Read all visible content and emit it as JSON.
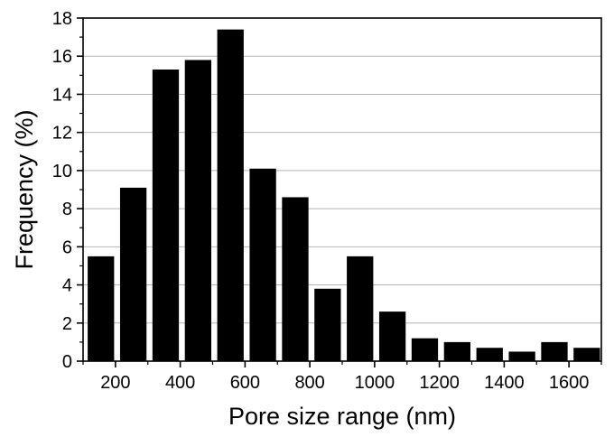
{
  "chart_data": {
    "type": "bar",
    "xlabel": "Pore size range (nm)",
    "ylabel": "Frequency (%)",
    "x": [
      150,
      250,
      350,
      450,
      550,
      650,
      750,
      850,
      950,
      1050,
      1150,
      1250,
      1350,
      1450,
      1550,
      1650
    ],
    "values": [
      5.5,
      9.1,
      15.3,
      15.8,
      17.4,
      10.1,
      8.6,
      3.8,
      5.5,
      2.6,
      1.2,
      1.0,
      0.7,
      0.5,
      1.0,
      0.7
    ],
    "bar_width": 90,
    "xlim": [
      100,
      1700
    ],
    "ylim": [
      0,
      18
    ],
    "x_ticks": [
      200,
      400,
      600,
      800,
      1000,
      1200,
      1400,
      1600
    ],
    "x_tick_labels": [
      "200",
      "400",
      "600",
      "800",
      "1000",
      "1200",
      "1400",
      "1600"
    ],
    "y_ticks": [
      0,
      2,
      4,
      6,
      8,
      10,
      12,
      14,
      16,
      18
    ],
    "y_tick_labels": [
      "0",
      "2",
      "4",
      "6",
      "8",
      "10",
      "12",
      "14",
      "16",
      "18"
    ],
    "grid": "horizontal",
    "colors": {
      "bar": "#000000",
      "grid": "#b4b4b4",
      "axis": "#000000"
    }
  }
}
